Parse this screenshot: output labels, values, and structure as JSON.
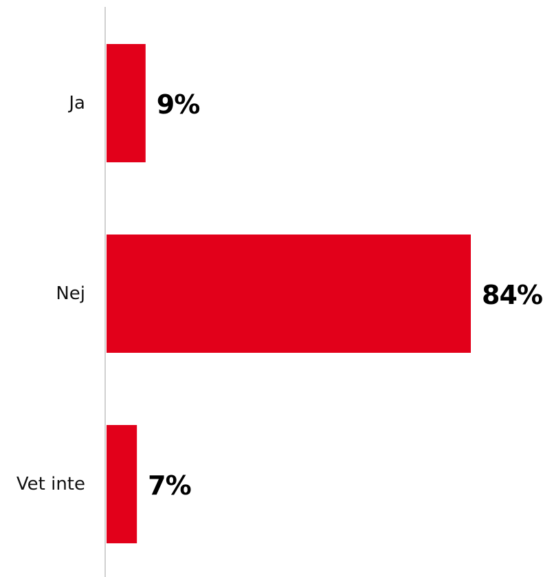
{
  "chart_data": {
    "type": "bar",
    "orientation": "horizontal",
    "categories": [
      "Ja",
      "Nej",
      "Vet inte"
    ],
    "values": [
      9,
      84,
      7
    ],
    "value_labels": [
      "9%",
      "84%",
      "7%"
    ],
    "unit": "%",
    "xlim": [
      0,
      100
    ],
    "bar_color": "#e2001a",
    "grid": false,
    "legend": "none"
  }
}
